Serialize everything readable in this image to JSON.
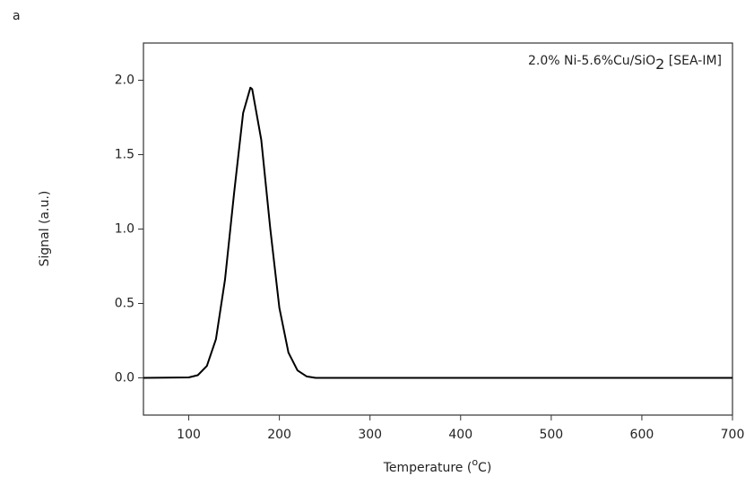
{
  "chart_data": {
    "type": "line",
    "panel_label": "a",
    "annotation_parts": [
      "2.0% Ni-5.6%Cu/SiO",
      "2",
      " [SEA-IM]"
    ],
    "ylabel": "Signal (a.u.)",
    "xlabel_parts": [
      "Temperature (",
      "o",
      "C)"
    ],
    "x": [
      50,
      100,
      110,
      120,
      130,
      140,
      150,
      160,
      168,
      170,
      180,
      190,
      200,
      210,
      220,
      230,
      240,
      300,
      400,
      500,
      600,
      700
    ],
    "series": [
      {
        "color": "#000000",
        "values": [
          0,
          0.003,
          0.018,
          0.08,
          0.26,
          0.66,
          1.24,
          1.78,
          1.95,
          1.94,
          1.6,
          1.0,
          0.47,
          0.17,
          0.05,
          0.01,
          0,
          0,
          0,
          0,
          0,
          0
        ]
      }
    ],
    "xlim": [
      50,
      700
    ],
    "xticks": [
      100,
      200,
      300,
      400,
      500,
      600,
      700
    ],
    "ylim": [
      -0.25,
      2.25
    ],
    "yticks": [
      {
        "value": 0,
        "label": "0.0"
      },
      {
        "value": 0.5,
        "label": "0.5"
      },
      {
        "value": 1,
        "label": "1.0"
      },
      {
        "value": 1.5,
        "label": "1.5"
      },
      {
        "value": 2,
        "label": "2.0"
      }
    ]
  }
}
